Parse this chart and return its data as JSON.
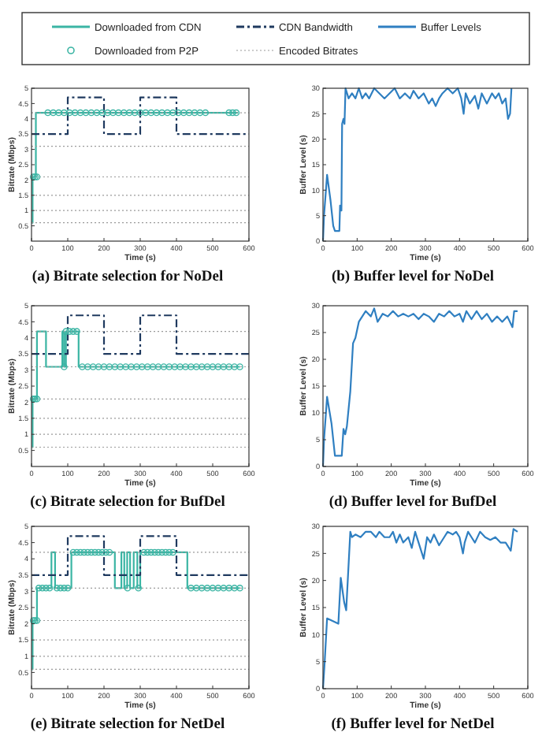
{
  "chart_data": [
    {
      "type": "step",
      "title": "(a) Bitrate selection for NoDel",
      "xlabel": "Time (s)",
      "ylabel": "Bitrate (Mbps)",
      "xlim": [
        0,
        600
      ],
      "xticks": [
        0,
        100,
        200,
        300,
        400,
        500,
        600
      ],
      "ylim": [
        0,
        5
      ],
      "yticks": [
        0.5,
        1,
        1.5,
        2,
        2.5,
        3,
        3.5,
        4,
        4.5,
        5
      ],
      "legend": "top",
      "series": [
        {
          "name": "Downloaded from CDN",
          "color": "#3bb5a4",
          "x": [
            0,
            3,
            12,
            570
          ],
          "values": [
            0.6,
            2.1,
            4.2,
            4.2
          ]
        },
        {
          "name": "Downloaded from P2P",
          "type": "scatter",
          "marker": "circle",
          "color": "#3bb5a4",
          "x": [
            5,
            10,
            15,
            45,
            60,
            75,
            90,
            105,
            120,
            135,
            150,
            165,
            180,
            195,
            210,
            225,
            240,
            255,
            270,
            285,
            300,
            315,
            330,
            345,
            360,
            375,
            390,
            405,
            420,
            435,
            450,
            465,
            480,
            545,
            555,
            565
          ],
          "values": [
            2.1,
            2.1,
            2.1,
            4.2,
            4.2,
            4.2,
            4.2,
            4.2,
            4.2,
            4.2,
            4.2,
            4.2,
            4.2,
            4.2,
            4.2,
            4.2,
            4.2,
            4.2,
            4.2,
            4.2,
            4.2,
            4.2,
            4.2,
            4.2,
            4.2,
            4.2,
            4.2,
            4.2,
            4.2,
            4.2,
            4.2,
            4.2,
            4.2,
            4.2,
            4.2,
            4.2
          ]
        },
        {
          "name": "CDN Bandwidth",
          "line_style": "dashed",
          "color": "#1f3a5f",
          "x": [
            0,
            100,
            200,
            300,
            400,
            600
          ],
          "values": [
            3.5,
            4.7,
            3.5,
            4.7,
            3.5,
            3.5
          ]
        },
        {
          "name": "Encoded Bitrates",
          "type": "line",
          "line_style": "dotted",
          "color": "#9a9a9a",
          "x": [
            0,
            600
          ],
          "values": [
            0.6,
            0.6
          ]
        },
        {
          "type": "line",
          "line_style": "dotted",
          "color": "#9a9a9a",
          "x": [
            0,
            600
          ],
          "values": [
            1,
            1
          ]
        },
        {
          "type": "line",
          "line_style": "dotted",
          "color": "#9a9a9a",
          "x": [
            0,
            600
          ],
          "values": [
            1.5,
            1.5
          ]
        },
        {
          "type": "line",
          "line_style": "dotted",
          "color": "#9a9a9a",
          "x": [
            0,
            600
          ],
          "values": [
            2.1,
            2.1
          ]
        },
        {
          "type": "line",
          "line_style": "dotted",
          "color": "#9a9a9a",
          "x": [
            0,
            600
          ],
          "values": [
            3.1,
            3.1
          ]
        },
        {
          "type": "line",
          "line_style": "dotted",
          "color": "#9a9a9a",
          "x": [
            0,
            600
          ],
          "values": [
            4.2,
            4.2
          ]
        }
      ]
    },
    {
      "type": "line",
      "title": "(b) Buffer level for NoDel",
      "xlabel": "Time (s)",
      "ylabel": "Buffer Level (s)",
      "xlim": [
        0,
        600
      ],
      "xticks": [
        0,
        100,
        200,
        300,
        400,
        500,
        600
      ],
      "ylim": [
        0,
        30
      ],
      "yticks": [
        0,
        5,
        10,
        15,
        20,
        25,
        30
      ],
      "legend": "top",
      "series": [
        {
          "name": "Buffer Levels",
          "color": "#2f7fc1",
          "x": [
            0,
            3,
            12,
            22,
            30,
            35,
            48,
            50,
            54,
            56,
            60,
            63,
            66,
            75,
            85,
            95,
            105,
            115,
            125,
            135,
            150,
            165,
            180,
            195,
            210,
            225,
            240,
            255,
            265,
            280,
            295,
            310,
            320,
            330,
            340,
            350,
            365,
            380,
            395,
            405,
            412,
            418,
            430,
            445,
            455,
            465,
            480,
            495,
            505,
            515,
            525,
            535,
            542,
            548,
            552
          ],
          "values": [
            0,
            5,
            13,
            8,
            3,
            2,
            2,
            7,
            6,
            23,
            24,
            23,
            30,
            28,
            29,
            28,
            30,
            28,
            29,
            28,
            30,
            29,
            28,
            29,
            30,
            28,
            29,
            28,
            29.5,
            28,
            29,
            27,
            28,
            26.5,
            28,
            29,
            30,
            29,
            30,
            28,
            25,
            29,
            27,
            28.5,
            26,
            29,
            27,
            29,
            28,
            29,
            27,
            28,
            24,
            25,
            30
          ]
        }
      ]
    },
    {
      "type": "step",
      "title": "(c) Bitrate selection for BufDel",
      "xlabel": "Time (s)",
      "ylabel": "Bitrate (Mbps)",
      "xlim": [
        0,
        600
      ],
      "xticks": [
        0,
        100,
        200,
        300,
        400,
        500,
        600
      ],
      "ylim": [
        0,
        5
      ],
      "yticks": [
        0.5,
        1,
        1.5,
        2,
        2.5,
        3,
        3.5,
        4,
        4.5,
        5
      ],
      "series": [
        {
          "color": "#3bb5a4",
          "x": [
            0,
            3,
            15,
            40,
            85,
            90,
            95,
            130,
            575
          ],
          "values": [
            0.6,
            2.1,
            4.2,
            3.1,
            4.2,
            3.1,
            4.2,
            3.1,
            3.1
          ]
        },
        {
          "type": "scatter",
          "marker": "circle",
          "color": "#3bb5a4",
          "x": [
            5,
            10,
            15,
            90,
            95,
            105,
            115,
            125,
            140,
            155,
            170,
            185,
            200,
            215,
            230,
            245,
            260,
            275,
            290,
            305,
            320,
            335,
            350,
            365,
            380,
            395,
            410,
            425,
            440,
            455,
            470,
            485,
            500,
            515,
            530,
            545,
            560,
            575
          ],
          "values": [
            2.1,
            2.1,
            2.1,
            3.1,
            4.2,
            4.2,
            4.2,
            4.2,
            3.1,
            3.1,
            3.1,
            3.1,
            3.1,
            3.1,
            3.1,
            3.1,
            3.1,
            3.1,
            3.1,
            3.1,
            3.1,
            3.1,
            3.1,
            3.1,
            3.1,
            3.1,
            3.1,
            3.1,
            3.1,
            3.1,
            3.1,
            3.1,
            3.1,
            3.1,
            3.1,
            3.1,
            3.1,
            3.1
          ]
        },
        {
          "line_style": "dashed",
          "color": "#1f3a5f",
          "x": [
            0,
            100,
            200,
            300,
            400,
            600
          ],
          "values": [
            3.5,
            4.7,
            3.5,
            4.7,
            3.5,
            3.5
          ]
        },
        {
          "type": "line",
          "line_style": "dotted",
          "color": "#9a9a9a",
          "x": [
            0,
            600
          ],
          "values": [
            0.6,
            0.6
          ]
        },
        {
          "type": "line",
          "line_style": "dotted",
          "color": "#9a9a9a",
          "x": [
            0,
            600
          ],
          "values": [
            1,
            1
          ]
        },
        {
          "type": "line",
          "line_style": "dotted",
          "color": "#9a9a9a",
          "x": [
            0,
            600
          ],
          "values": [
            1.5,
            1.5
          ]
        },
        {
          "type": "line",
          "line_style": "dotted",
          "color": "#9a9a9a",
          "x": [
            0,
            600
          ],
          "values": [
            2.1,
            2.1
          ]
        },
        {
          "type": "line",
          "line_style": "dotted",
          "color": "#9a9a9a",
          "x": [
            0,
            600
          ],
          "values": [
            3.1,
            3.1
          ]
        },
        {
          "type": "line",
          "line_style": "dotted",
          "color": "#9a9a9a",
          "x": [
            0,
            600
          ],
          "values": [
            4.2,
            4.2
          ]
        }
      ]
    },
    {
      "type": "line",
      "title": "(d) Buffer level for BufDel",
      "xlabel": "Time (s)",
      "ylabel": "Buffer Level (s)",
      "xlim": [
        0,
        600
      ],
      "xticks": [
        0,
        100,
        200,
        300,
        400,
        500,
        600
      ],
      "ylim": [
        0,
        30
      ],
      "yticks": [
        0,
        5,
        10,
        15,
        20,
        25,
        30
      ],
      "series": [
        {
          "color": "#2f7fc1",
          "x": [
            0,
            3,
            12,
            25,
            35,
            55,
            60,
            65,
            70,
            80,
            88,
            95,
            105,
            115,
            125,
            140,
            150,
            160,
            175,
            190,
            205,
            220,
            235,
            250,
            265,
            280,
            295,
            310,
            325,
            340,
            355,
            370,
            385,
            400,
            410,
            420,
            435,
            450,
            465,
            480,
            495,
            510,
            525,
            540,
            555,
            560,
            570
          ],
          "values": [
            0,
            5,
            13,
            8,
            2,
            2,
            7,
            6,
            7.5,
            14,
            23,
            24,
            27,
            28,
            29,
            28,
            29.5,
            27,
            28.5,
            28,
            29,
            28,
            28.5,
            28,
            28.5,
            27.5,
            28.5,
            28,
            27,
            28.5,
            28,
            29,
            28,
            28.5,
            27,
            29,
            27.5,
            29,
            27.5,
            28.5,
            27,
            28,
            27,
            28,
            26,
            29,
            29
          ]
        }
      ]
    },
    {
      "type": "step",
      "title": "(e) Bitrate selection for NetDel",
      "xlabel": "Time (s)",
      "ylabel": "Bitrate (Mbps)",
      "xlim": [
        0,
        600
      ],
      "xticks": [
        0,
        100,
        200,
        300,
        400,
        500,
        600
      ],
      "ylim": [
        0,
        5
      ],
      "yticks": [
        0.5,
        1,
        1.5,
        2,
        2.5,
        3,
        3.5,
        4,
        4.5,
        5
      ],
      "series": [
        {
          "color": "#3bb5a4",
          "x": [
            0,
            3,
            15,
            55,
            65,
            110,
            230,
            248,
            256,
            264,
            272,
            282,
            292,
            300,
            430,
            575
          ],
          "values": [
            0.6,
            2.1,
            3.1,
            4.2,
            3.1,
            4.2,
            3.1,
            4.2,
            3.1,
            4.2,
            3.1,
            4.2,
            3.1,
            4.2,
            3.1,
            3.1
          ]
        },
        {
          "type": "scatter",
          "marker": "circle",
          "color": "#3bb5a4",
          "x": [
            5,
            10,
            15,
            20,
            30,
            40,
            50,
            70,
            80,
            90,
            100,
            115,
            125,
            135,
            145,
            155,
            165,
            175,
            185,
            195,
            205,
            215,
            265,
            295,
            310,
            320,
            330,
            340,
            350,
            360,
            370,
            380,
            390,
            440,
            455,
            470,
            485,
            500,
            515,
            530,
            545,
            560,
            575
          ],
          "values": [
            2.1,
            2.1,
            2.1,
            3.1,
            3.1,
            3.1,
            3.1,
            3.1,
            3.1,
            3.1,
            3.1,
            4.2,
            4.2,
            4.2,
            4.2,
            4.2,
            4.2,
            4.2,
            4.2,
            4.2,
            4.2,
            4.2,
            3.1,
            3.1,
            4.2,
            4.2,
            4.2,
            4.2,
            4.2,
            4.2,
            4.2,
            4.2,
            4.2,
            3.1,
            3.1,
            3.1,
            3.1,
            3.1,
            3.1,
            3.1,
            3.1,
            3.1,
            3.1
          ]
        },
        {
          "line_style": "dashed",
          "color": "#1f3a5f",
          "x": [
            0,
            100,
            200,
            300,
            400,
            600
          ],
          "values": [
            3.5,
            4.7,
            3.5,
            4.7,
            3.5,
            3.5
          ]
        },
        {
          "type": "line",
          "line_style": "dotted",
          "color": "#9a9a9a",
          "x": [
            0,
            600
          ],
          "values": [
            0.6,
            0.6
          ]
        },
        {
          "type": "line",
          "line_style": "dotted",
          "color": "#9a9a9a",
          "x": [
            0,
            600
          ],
          "values": [
            1,
            1
          ]
        },
        {
          "type": "line",
          "line_style": "dotted",
          "color": "#9a9a9a",
          "x": [
            0,
            600
          ],
          "values": [
            1.5,
            1.5
          ]
        },
        {
          "type": "line",
          "line_style": "dotted",
          "color": "#9a9a9a",
          "x": [
            0,
            600
          ],
          "values": [
            2.1,
            2.1
          ]
        },
        {
          "type": "line",
          "line_style": "dotted",
          "color": "#9a9a9a",
          "x": [
            0,
            600
          ],
          "values": [
            3.1,
            3.1
          ]
        },
        {
          "type": "line",
          "line_style": "dotted",
          "color": "#9a9a9a",
          "x": [
            0,
            600
          ],
          "values": [
            4.2,
            4.2
          ]
        }
      ]
    },
    {
      "type": "line",
      "title": "(f) Buffer level for NetDel",
      "xlabel": "Time (s)",
      "ylabel": "Buffer Level (s)",
      "xlim": [
        0,
        600
      ],
      "xticks": [
        0,
        100,
        200,
        300,
        400,
        500,
        600
      ],
      "ylim": [
        0,
        30
      ],
      "yticks": [
        0,
        5,
        10,
        15,
        20,
        25,
        30
      ],
      "series": [
        {
          "color": "#2f7fc1",
          "x": [
            0,
            5,
            12,
            45,
            52,
            62,
            68,
            80,
            85,
            95,
            110,
            125,
            140,
            155,
            165,
            180,
            195,
            205,
            215,
            225,
            235,
            250,
            260,
            270,
            280,
            290,
            295,
            305,
            315,
            325,
            340,
            355,
            365,
            380,
            390,
            400,
            410,
            415,
            425,
            435,
            445,
            460,
            475,
            490,
            505,
            520,
            535,
            550,
            558,
            570
          ],
          "values": [
            0,
            5,
            13,
            12,
            20.5,
            16,
            14.5,
            29,
            28,
            28.5,
            28,
            29,
            29,
            28,
            29,
            28,
            28,
            29,
            27,
            28.5,
            27,
            28,
            26,
            29,
            27,
            25,
            24,
            28,
            27,
            28.5,
            26.5,
            28,
            29,
            28.5,
            29,
            28,
            25,
            27,
            29,
            28,
            27,
            29,
            28,
            27.5,
            28,
            27,
            27,
            25.5,
            29.5,
            29
          ]
        }
      ]
    }
  ]
}
